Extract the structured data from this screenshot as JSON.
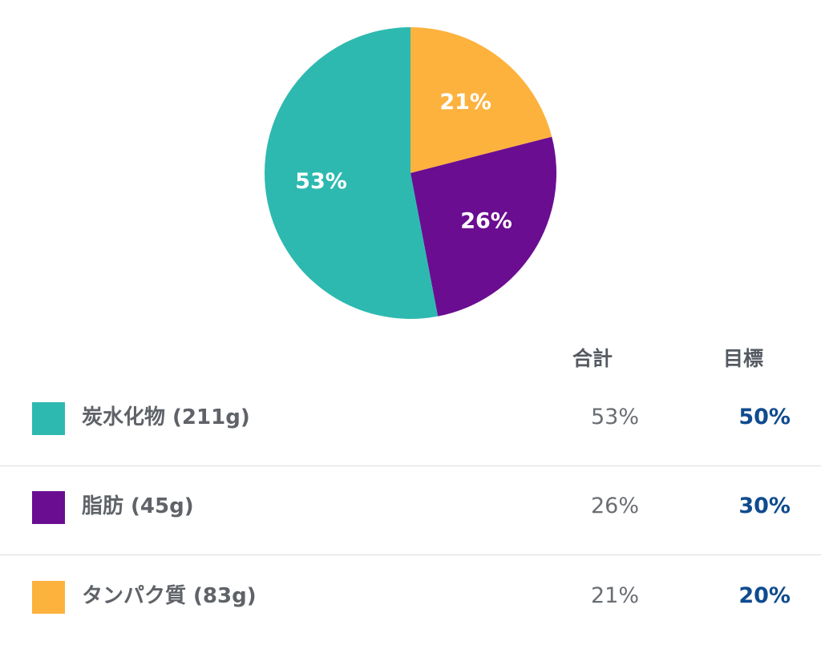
{
  "chart_data": {
    "type": "pie",
    "slices": [
      {
        "label": "タンパク質",
        "value": 21,
        "display": "21%",
        "color": "#FDB23E"
      },
      {
        "label": "脂肪",
        "value": 26,
        "display": "26%",
        "color": "#6A0D91"
      },
      {
        "label": "炭水化物",
        "value": 53,
        "display": "53%",
        "color": "#2DB9B0"
      }
    ]
  },
  "table": {
    "header_total": "合計",
    "header_goal": "目標",
    "rows": [
      {
        "label": "炭水化物 (211g)",
        "total": "53%",
        "goal": "50%",
        "color": "#2DB9B0"
      },
      {
        "label": "脂肪 (45g)",
        "total": "26%",
        "goal": "30%",
        "color": "#6A0D91"
      },
      {
        "label": "タンパク質 (83g)",
        "total": "21%",
        "goal": "20%",
        "color": "#FDB23E"
      }
    ]
  }
}
